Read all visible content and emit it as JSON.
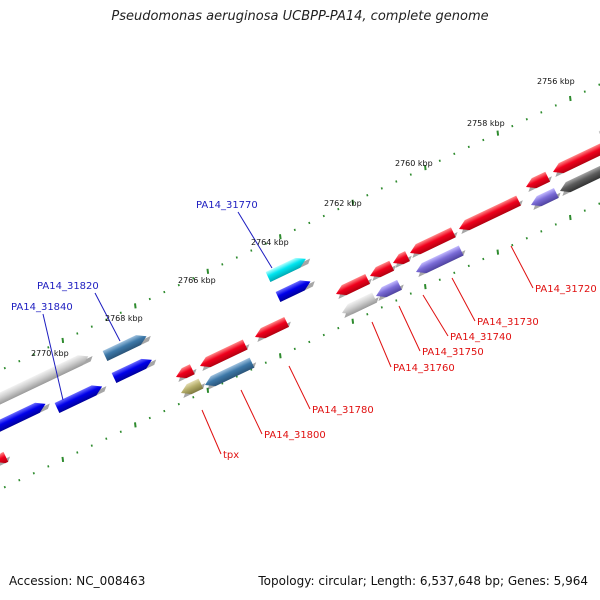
{
  "header": {
    "title": "Pseudomonas aeruginosa UCBPP-PA14, complete genome"
  },
  "footer": {
    "accession": "Accession: NC_008463",
    "summary": "Topology: circular; Length: 6,537,648 bp; Genes: 5,964"
  },
  "colors": {
    "background": "#ffffff",
    "backbone": "#8c8c8c",
    "tick": "#2e8b2e",
    "gene_red": "#e8001a",
    "gene_blue": "#0000e0",
    "gene_steel": "#3d78a8",
    "gene_cyan": "#00e5f0",
    "gene_purple": "#7a6bd6",
    "gene_gray": "#c9c9c9",
    "gene_darkgray": "#5b5b5b",
    "gene_olive": "#b4ad6a",
    "label_forward": "#1d1dc0",
    "label_reverse": "#e01010"
  },
  "ruler": {
    "tick_labels": [
      "2756 kbp",
      "2758 kbp",
      "2760 kbp",
      "2762 kbp",
      "2764 kbp",
      "2766 kbp",
      "2768 kbp",
      "2770 kbp"
    ]
  },
  "forward_labels": [
    "PA14_31770",
    "PA14_31820",
    "PA14_31840"
  ],
  "reverse_labels": [
    "PA14_31720",
    "PA14_31730",
    "PA14_31740",
    "PA14_31750",
    "PA14_31760",
    "PA14_31780",
    "PA14_31800",
    "tpx"
  ]
}
